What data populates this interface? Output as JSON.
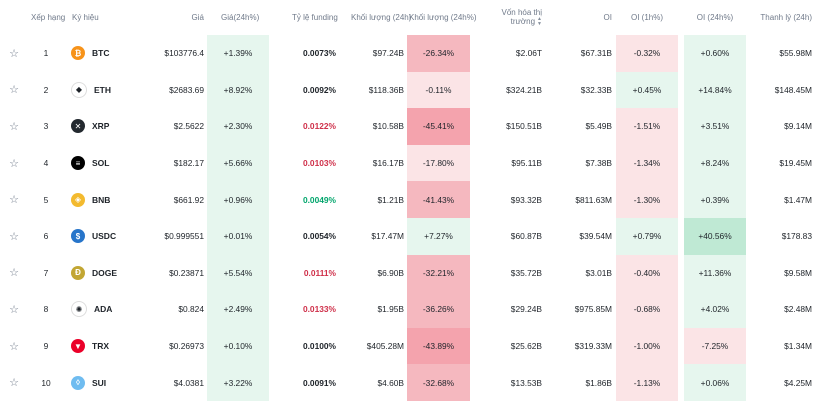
{
  "header": {
    "rank": "Xếp hạng",
    "symbol": "Ký hiệu",
    "price": "Giá",
    "change24h": "Giá(24h%)",
    "funding": "Tỷ lệ funding",
    "volume": "Khối lượng (24h)",
    "volume_pct": "Khối lượng (24h%)",
    "mcap_line1": "Vốn hóa thị",
    "mcap_line2": "trường",
    "oi": "OI",
    "oi_1h": "OI (1h%)",
    "oi_24h": "OI (24h%)",
    "liq": "Thanh lý (24h)"
  },
  "colors": {
    "green_light": "#e6f6ee",
    "green_mid": "#bfe9d4",
    "red_light": "#fbe4e6",
    "red_mid": "#f5b8bf",
    "red_strong": "#f4a3ad",
    "funding_red": "#cf304a",
    "funding_green": "#03a66d"
  },
  "rows": [
    {
      "rank": "1",
      "coin": "BTC",
      "icon": "bitcoin-icon",
      "icon_color": "#f7931a",
      "icon_glyph": "₿",
      "price": "$103776.4",
      "change": "+1.39%",
      "funding": "0.0073%",
      "funding_tone": "neutral",
      "volume": "$97.24B",
      "volume_pct": "-26.34%",
      "volume_pct_tone": "red_mid",
      "mcap": "$2.06T",
      "oi": "$67.31B",
      "oi_1h": "-0.32%",
      "oi_1h_tone": "red_light",
      "oi_24h": "+0.60%",
      "oi_24h_tone": "green_light",
      "liq": "$55.98M"
    },
    {
      "rank": "2",
      "coin": "ETH",
      "icon": "ethereum-icon",
      "icon_color": "#ffffff",
      "icon_glyph": "◆",
      "price": "$2683.69",
      "change": "+8.92%",
      "funding": "0.0092%",
      "funding_tone": "neutral",
      "volume": "$118.36B",
      "volume_pct": "-0.11%",
      "volume_pct_tone": "red_light",
      "mcap": "$324.21B",
      "oi": "$32.33B",
      "oi_1h": "+0.45%",
      "oi_1h_tone": "green_light",
      "oi_24h": "+14.84%",
      "oi_24h_tone": "green_light",
      "liq": "$148.45M"
    },
    {
      "rank": "3",
      "coin": "XRP",
      "icon": "xrp-icon",
      "icon_color": "#23292f",
      "icon_glyph": "✕",
      "price": "$2.5622",
      "change": "+2.30%",
      "funding": "0.0122%",
      "funding_tone": "red",
      "volume": "$10.58B",
      "volume_pct": "-45.41%",
      "volume_pct_tone": "red_strong",
      "mcap": "$150.51B",
      "oi": "$5.49B",
      "oi_1h": "-1.51%",
      "oi_1h_tone": "red_light",
      "oi_24h": "+3.51%",
      "oi_24h_tone": "green_light",
      "liq": "$9.14M"
    },
    {
      "rank": "4",
      "coin": "SOL",
      "icon": "solana-icon",
      "icon_color": "#000000",
      "icon_glyph": "≡",
      "price": "$182.17",
      "change": "+5.66%",
      "funding": "0.0103%",
      "funding_tone": "red",
      "volume": "$16.17B",
      "volume_pct": "-17.80%",
      "volume_pct_tone": "red_light",
      "mcap": "$95.11B",
      "oi": "$7.38B",
      "oi_1h": "-1.34%",
      "oi_1h_tone": "red_light",
      "oi_24h": "+8.24%",
      "oi_24h_tone": "green_light",
      "liq": "$19.45M"
    },
    {
      "rank": "5",
      "coin": "BNB",
      "icon": "bnb-icon",
      "icon_color": "#f3ba2f",
      "icon_glyph": "◈",
      "price": "$661.92",
      "change": "+0.96%",
      "funding": "0.0049%",
      "funding_tone": "green",
      "volume": "$1.21B",
      "volume_pct": "-41.43%",
      "volume_pct_tone": "red_mid",
      "mcap": "$93.32B",
      "oi": "$811.63M",
      "oi_1h": "-1.30%",
      "oi_1h_tone": "red_light",
      "oi_24h": "+0.39%",
      "oi_24h_tone": "green_light",
      "liq": "$1.47M"
    },
    {
      "rank": "6",
      "coin": "USDC",
      "icon": "usdc-icon",
      "icon_color": "#2775ca",
      "icon_glyph": "$",
      "price": "$0.999551",
      "change": "+0.01%",
      "funding": "0.0054%",
      "funding_tone": "neutral",
      "volume": "$17.47M",
      "volume_pct": "+7.27%",
      "volume_pct_tone": "green_light",
      "mcap": "$60.87B",
      "oi": "$39.54M",
      "oi_1h": "+0.79%",
      "oi_1h_tone": "green_light",
      "oi_24h": "+40.56%",
      "oi_24h_tone": "green_mid",
      "liq": "$178.83"
    },
    {
      "rank": "7",
      "coin": "DOGE",
      "icon": "dogecoin-icon",
      "icon_color": "#c2a633",
      "icon_glyph": "Ð",
      "price": "$0.23871",
      "change": "+5.54%",
      "funding": "0.0111%",
      "funding_tone": "red",
      "volume": "$6.90B",
      "volume_pct": "-32.21%",
      "volume_pct_tone": "red_mid",
      "mcap": "$35.72B",
      "oi": "$3.01B",
      "oi_1h": "-0.40%",
      "oi_1h_tone": "red_light",
      "oi_24h": "+11.36%",
      "oi_24h_tone": "green_light",
      "liq": "$9.58M"
    },
    {
      "rank": "8",
      "coin": "ADA",
      "icon": "cardano-icon",
      "icon_color": "#ffffff",
      "icon_glyph": "✺",
      "price": "$0.824",
      "change": "+2.49%",
      "funding": "0.0133%",
      "funding_tone": "red",
      "volume": "$1.95B",
      "volume_pct": "-36.26%",
      "volume_pct_tone": "red_mid",
      "mcap": "$29.24B",
      "oi": "$975.85M",
      "oi_1h": "-0.68%",
      "oi_1h_tone": "red_light",
      "oi_24h": "+4.02%",
      "oi_24h_tone": "green_light",
      "liq": "$2.48M"
    },
    {
      "rank": "9",
      "coin": "TRX",
      "icon": "tron-icon",
      "icon_color": "#eb0029",
      "icon_glyph": "▼",
      "price": "$0.26973",
      "change": "+0.10%",
      "funding": "0.0100%",
      "funding_tone": "neutral",
      "volume": "$405.28M",
      "volume_pct": "-43.89%",
      "volume_pct_tone": "red_strong",
      "mcap": "$25.62B",
      "oi": "$319.33M",
      "oi_1h": "-1.00%",
      "oi_1h_tone": "red_light",
      "oi_24h": "-7.25%",
      "oi_24h_tone": "red_light",
      "liq": "$1.34M"
    },
    {
      "rank": "10",
      "coin": "SUI",
      "icon": "sui-icon",
      "icon_color": "#6fbcf0",
      "icon_glyph": "◊",
      "price": "$4.0381",
      "change": "+3.22%",
      "funding": "0.0091%",
      "funding_tone": "neutral",
      "volume": "$4.60B",
      "volume_pct": "-32.68%",
      "volume_pct_tone": "red_mid",
      "mcap": "$13.53B",
      "oi": "$1.86B",
      "oi_1h": "-1.13%",
      "oi_1h_tone": "red_light",
      "oi_24h": "+0.06%",
      "oi_24h_tone": "green_light",
      "liq": "$4.25M"
    }
  ]
}
